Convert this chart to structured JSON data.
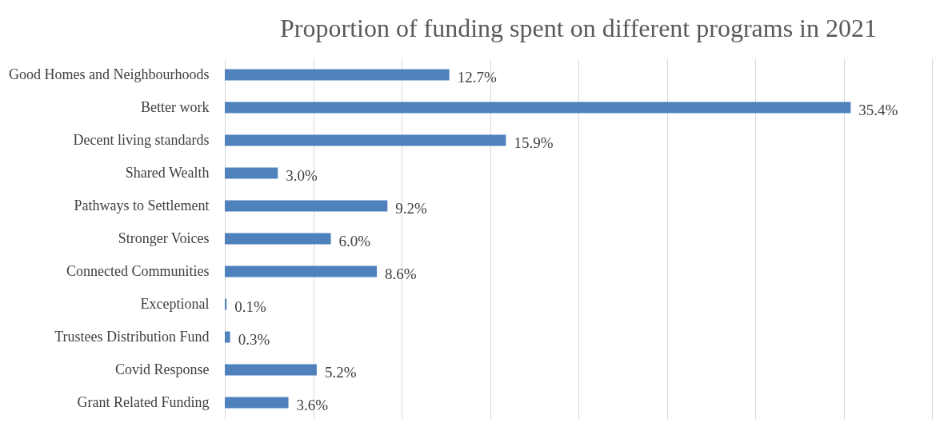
{
  "chart_data": {
    "type": "bar",
    "orientation": "horizontal",
    "title": "Proportion of funding spent on different programs in 2021",
    "categories": [
      "Good Homes and Neighbourhoods",
      "Better work",
      "Decent living standards",
      "Shared Wealth",
      "Pathways to Settlement",
      "Stronger Voices",
      "Connected Communities",
      "Exceptional",
      "Trustees Distribution Fund",
      "Covid Response",
      "Grant Related Funding"
    ],
    "values": [
      12.7,
      35.4,
      15.9,
      3.0,
      9.2,
      6.0,
      8.6,
      0.1,
      0.3,
      5.2,
      3.6
    ],
    "value_labels": [
      "12.7%",
      "35.4%",
      "15.9%",
      "3.0%",
      "9.2%",
      "6.0%",
      "8.6%",
      "0.1%",
      "0.3%",
      "5.2%",
      "3.6%"
    ],
    "color": "#4f81bd",
    "xlim": [
      0,
      40
    ],
    "xticks": [
      {
        "value": 0,
        "label": null
      },
      {
        "value": 5,
        "label": null
      },
      {
        "value": 10,
        "label": null
      },
      {
        "value": 15,
        "label": null
      },
      {
        "value": 20,
        "label": null
      },
      {
        "value": 25,
        "label": null
      },
      {
        "value": 30,
        "label": null
      },
      {
        "value": 35,
        "label": null
      },
      {
        "value": 40,
        "label": null
      }
    ],
    "grid": "x",
    "tick_labels": "y"
  }
}
